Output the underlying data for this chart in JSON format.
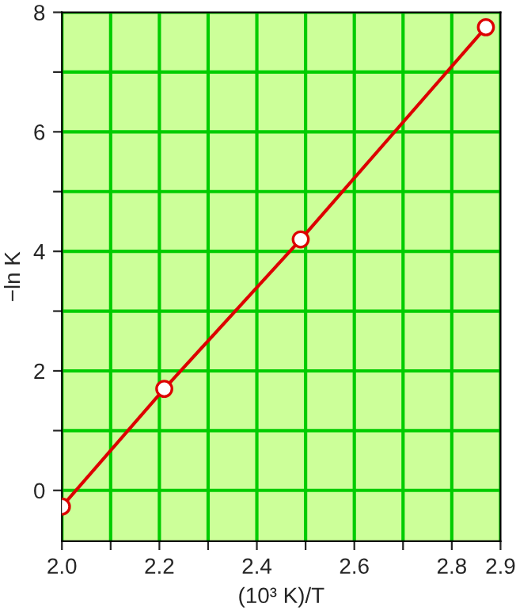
{
  "chart_data": {
    "type": "line",
    "xlabel": "(10³ K)/T",
    "ylabel": "−ln K",
    "x": [
      2.0,
      2.21,
      2.49,
      2.87
    ],
    "series": [
      {
        "color": "#dd0000",
        "values": [
          -0.27,
          1.7,
          4.2,
          7.75
        ]
      }
    ],
    "marker": "circle",
    "line_style": "solid",
    "grid": true,
    "xlim": [
      2.0,
      2.9
    ],
    "xticks": [
      {
        "value": 2.0,
        "label": "2.0"
      },
      {
        "value": 2.1,
        "label": null
      },
      2.2,
      {
        "value": 2.3,
        "label": null
      },
      2.4,
      {
        "value": 2.5,
        "label": null
      },
      2.6,
      {
        "value": 2.7,
        "label": null
      },
      2.8,
      2.9
    ],
    "ylim": [
      -0.85,
      8
    ],
    "yticks": [
      0,
      {
        "value": 1,
        "label": null
      },
      2,
      {
        "value": 3,
        "label": null
      },
      4,
      {
        "value": 5,
        "label": null
      },
      6,
      {
        "value": 7,
        "label": null
      },
      8
    ]
  }
}
